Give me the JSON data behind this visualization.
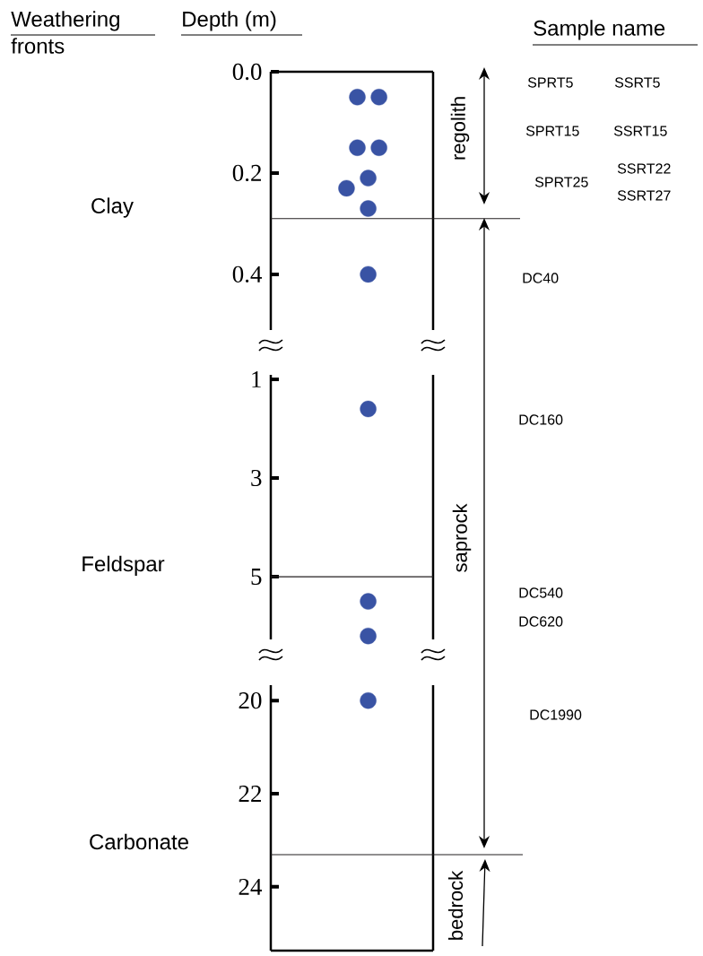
{
  "chart_data": [
    {
      "type": "scatter",
      "title": "Weathering fronts",
      "ylabel": "Depth (m)",
      "categories": [
        null,
        null,
        null,
        null,
        null,
        null,
        null,
        null,
        null,
        null,
        null,
        null,
        null,
        null,
        null,
        null
      ],
      "ylim": [
        0.51,
        0
      ],
      "yticks": [
        {
          "value": 0,
          "label": "0.0"
        },
        0.2,
        0.4
      ],
      "marker": "circle",
      "series": [
        {
          "color": "#3953a4",
          "values": [
            null,
            null,
            null,
            null,
            null,
            null,
            null,
            null,
            0.05,
            null,
            0.05,
            null,
            null,
            null,
            null,
            null
          ]
        },
        {
          "color": "#3953a4",
          "values": [
            null,
            null,
            null,
            null,
            null,
            null,
            null,
            null,
            0.15,
            null,
            0.15,
            null,
            null,
            null,
            null,
            null
          ]
        },
        {
          "color": "#3953a4",
          "values": [
            null,
            null,
            null,
            null,
            null,
            null,
            null,
            0.23,
            null,
            0.21,
            null,
            null,
            null,
            null,
            null,
            null
          ]
        },
        {
          "color": "#3953a4",
          "values": [
            null,
            null,
            null,
            null,
            null,
            null,
            null,
            null,
            null,
            0.27,
            null,
            null,
            null,
            null,
            null,
            null
          ]
        },
        {
          "color": "#3953a4",
          "values": [
            null,
            null,
            null,
            null,
            null,
            null,
            null,
            null,
            null,
            0.4,
            null,
            null,
            null,
            null,
            null,
            null
          ]
        }
      ],
      "ref_lines": [
        {
          "axis": "y",
          "value": 0.29,
          "label": "Clay",
          "color": "#231f20"
        }
      ],
      "annotations": [
        "Sample name",
        "regolith",
        "SPRT5",
        "SSRT5",
        "SPRT15",
        "SSRT15",
        "SPRT25",
        "SSRT22",
        "SSRT27",
        "DC40"
      ]
    },
    {
      "type": "scatter",
      "categories": [
        null,
        null,
        null,
        null,
        null,
        null,
        null,
        null,
        null,
        null,
        null,
        null,
        null,
        null,
        null,
        null
      ],
      "ylim": [
        6.27,
        0.91
      ],
      "yticks": [
        1,
        3,
        5
      ],
      "marker": "circle",
      "series": [
        {
          "color": "#3953a4",
          "values": [
            null,
            null,
            null,
            null,
            null,
            null,
            null,
            null,
            null,
            1.6,
            null,
            null,
            null,
            null,
            null,
            null
          ]
        },
        {
          "color": "#3953a4",
          "values": [
            null,
            null,
            null,
            null,
            null,
            null,
            null,
            null,
            null,
            5.5,
            null,
            null,
            null,
            null,
            null,
            null
          ]
        },
        {
          "color": "#3953a4",
          "values": [
            null,
            null,
            null,
            null,
            null,
            null,
            null,
            null,
            null,
            6.2,
            null,
            null,
            null,
            null,
            null,
            null
          ]
        }
      ],
      "ref_lines": [
        {
          "axis": "y",
          "value": 5,
          "label": "Feldspar",
          "color": "#231f20"
        }
      ],
      "annotations": [
        "saprock",
        "DC160",
        "DC540",
        "DC620"
      ]
    },
    {
      "type": "scatter",
      "categories": [
        null,
        null,
        null,
        null,
        null,
        null,
        null,
        null,
        null,
        null,
        null,
        null,
        null,
        null,
        null,
        null
      ],
      "ylim": [
        25.37,
        19.67
      ],
      "yticks": [
        20,
        22,
        24
      ],
      "marker": "circle",
      "series": [
        {
          "color": "#3953a4",
          "values": [
            null,
            null,
            null,
            null,
            null,
            null,
            null,
            null,
            null,
            20,
            null,
            null,
            null,
            null,
            null,
            null
          ]
        }
      ],
      "ref_lines": [
        {
          "axis": "y",
          "value": 23.31,
          "label": "Carbonate",
          "color": "#231f20"
        }
      ],
      "annotations": [
        "bedrock",
        "DC1990"
      ]
    }
  ]
}
